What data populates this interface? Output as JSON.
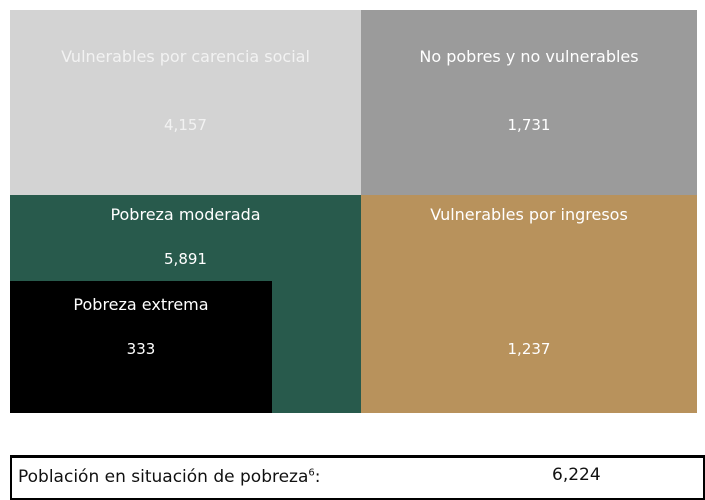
{
  "quadrants": [
    {
      "label": "Vulnerables por carencia social",
      "value": "4,157"
    },
    {
      "label": "No pobres y no vulnerables",
      "value": "1,731"
    },
    {
      "label": "Pobreza moderada",
      "value": "5,891"
    },
    {
      "label": "Vulnerables por ingresos",
      "value": "1,237"
    },
    {
      "label": "Pobreza extrema",
      "value": "333"
    }
  ],
  "footer": {
    "label": "Población en situación de pobreza",
    "note": "6",
    "suffix": ":",
    "value": "6,224"
  }
}
